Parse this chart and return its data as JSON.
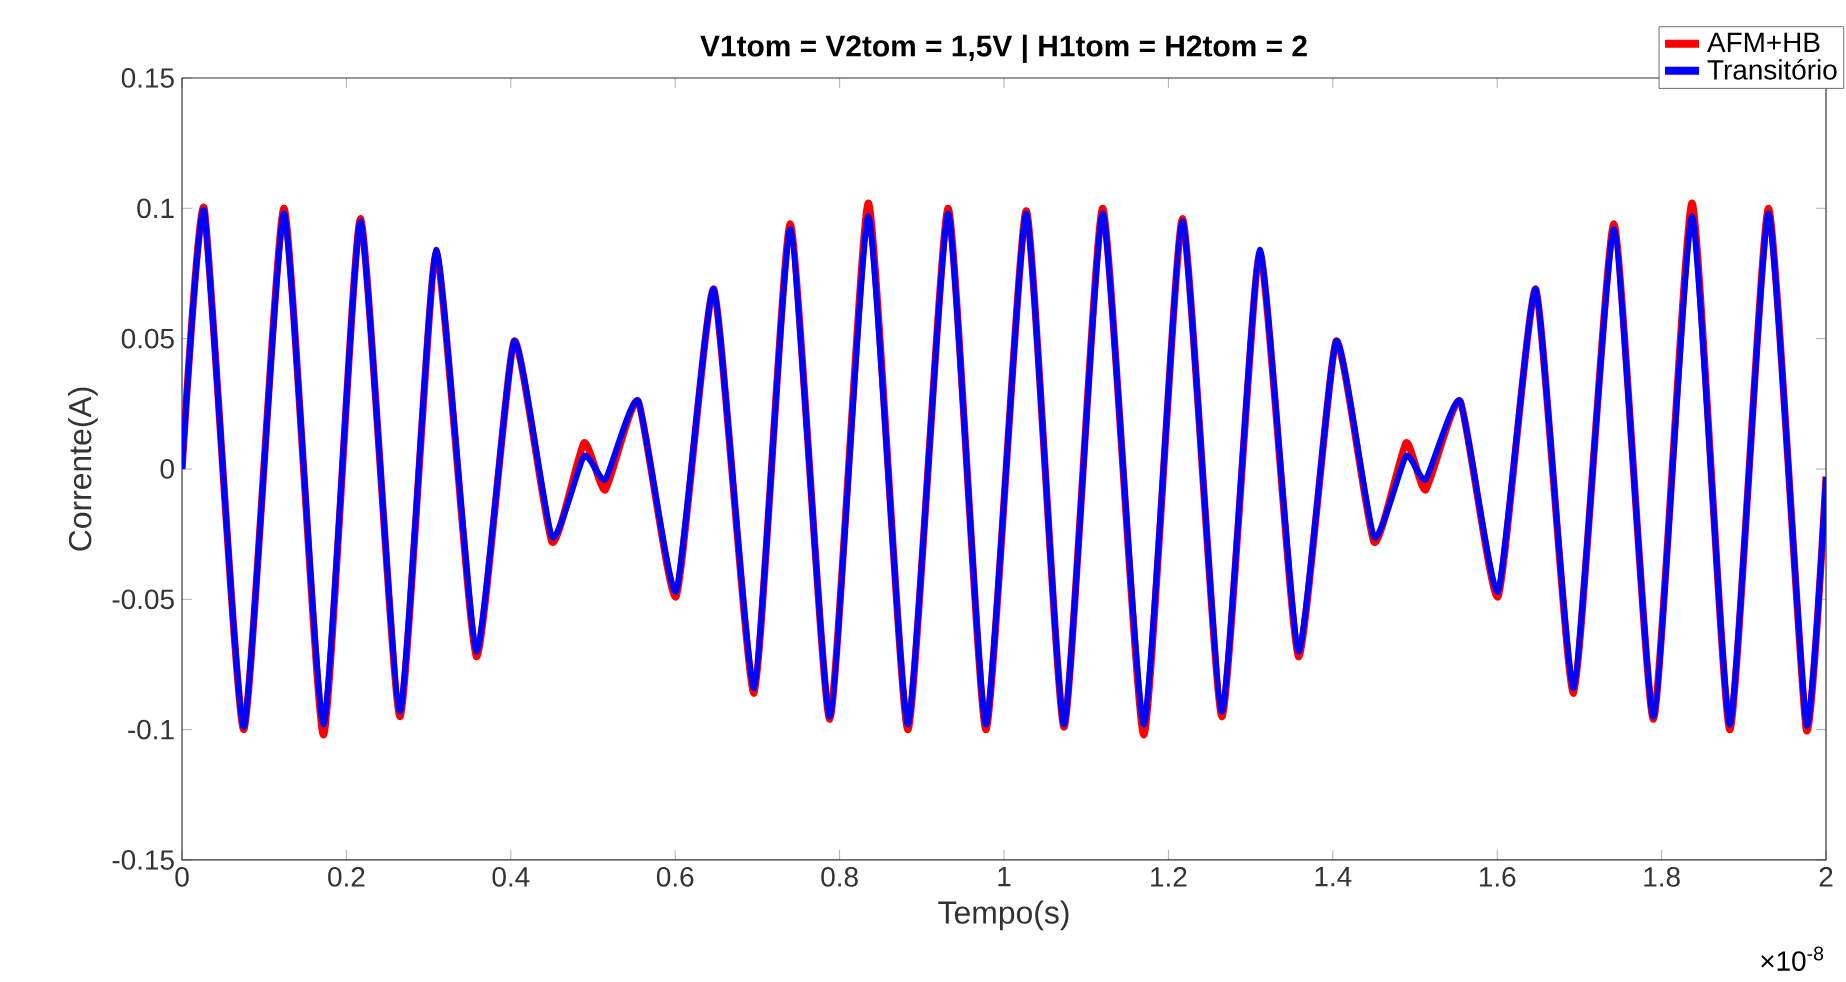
{
  "chart_data": {
    "type": "line",
    "title": "V1tom = V2tom = 1,5V | H1tom = H2tom = 2",
    "xlabel": "Tempo(s)",
    "ylabel": "Corrente(A)",
    "annotations": [
      "×10$^{-8}$"
    ],
    "xlim": [
      0,
      2
    ],
    "xticks": [
      0,
      0.2,
      0.4,
      0.6,
      0.8,
      1,
      1.2,
      1.4,
      1.6,
      1.8,
      2
    ],
    "ylim": [
      -0.15,
      0.15
    ],
    "yticks": [
      -0.15,
      -0.1,
      -0.05,
      0,
      0.05,
      0.1,
      0.15
    ],
    "legend": "top right",
    "series": [
      {
        "name": "AFM+HB",
        "color": "#ff0000",
        "x": [
          0,
          0.027,
          0.075,
          0.124,
          0.172,
          0.217,
          0.265,
          0.309,
          0.358,
          0.404,
          0.45,
          0.489,
          0.515,
          0.555,
          0.601,
          0.647,
          0.696,
          0.74,
          0.788,
          0.835,
          0.883,
          0.932,
          0.978,
          1.027,
          1.073,
          1.12,
          1.17,
          1.217,
          1.265,
          1.311,
          1.358,
          1.404,
          1.45,
          1.489,
          1.513,
          1.555,
          1.601,
          1.647,
          1.693,
          1.742,
          1.79,
          1.837,
          1.883,
          1.93,
          1.976,
          2.0
        ],
        "values": [
          0,
          0.1,
          -0.1,
          0.1,
          -0.102,
          0.096,
          -0.095,
          0.083,
          -0.072,
          0.049,
          -0.028,
          0.01,
          -0.008,
          0.026,
          -0.049,
          0.069,
          -0.086,
          0.094,
          -0.096,
          0.102,
          -0.1,
          0.1,
          -0.1,
          0.099,
          -0.099,
          0.1,
          -0.102,
          0.096,
          -0.095,
          0.083,
          -0.072,
          0.049,
          -0.028,
          0.01,
          -0.008,
          0.026,
          -0.049,
          0.069,
          -0.086,
          0.094,
          -0.096,
          0.102,
          -0.1,
          0.1,
          -0.1,
          -0.003
        ]
      },
      {
        "name": "Transitório",
        "color": "#0000ff",
        "x": [
          0,
          0.027,
          0.075,
          0.124,
          0.172,
          0.217,
          0.265,
          0.309,
          0.358,
          0.404,
          0.45,
          0.489,
          0.515,
          0.555,
          0.601,
          0.647,
          0.696,
          0.74,
          0.788,
          0.835,
          0.883,
          0.932,
          0.978,
          1.027,
          1.073,
          1.12,
          1.17,
          1.217,
          1.265,
          1.311,
          1.358,
          1.404,
          1.45,
          1.489,
          1.513,
          1.555,
          1.601,
          1.647,
          1.693,
          1.742,
          1.79,
          1.837,
          1.883,
          1.93,
          1.976,
          2.0
        ],
        "values": [
          0,
          0.099,
          -0.099,
          0.098,
          -0.098,
          0.095,
          -0.093,
          0.084,
          -0.07,
          0.049,
          -0.026,
          0.005,
          -0.004,
          0.026,
          -0.047,
          0.069,
          -0.084,
          0.092,
          -0.095,
          0.097,
          -0.098,
          0.098,
          -0.098,
          0.098,
          -0.098,
          0.098,
          -0.098,
          0.095,
          -0.093,
          0.084,
          -0.07,
          0.049,
          -0.026,
          0.005,
          -0.004,
          0.026,
          -0.047,
          0.069,
          -0.084,
          0.092,
          -0.095,
          0.097,
          -0.098,
          0.098,
          -0.098,
          -0.003
        ]
      }
    ]
  }
}
